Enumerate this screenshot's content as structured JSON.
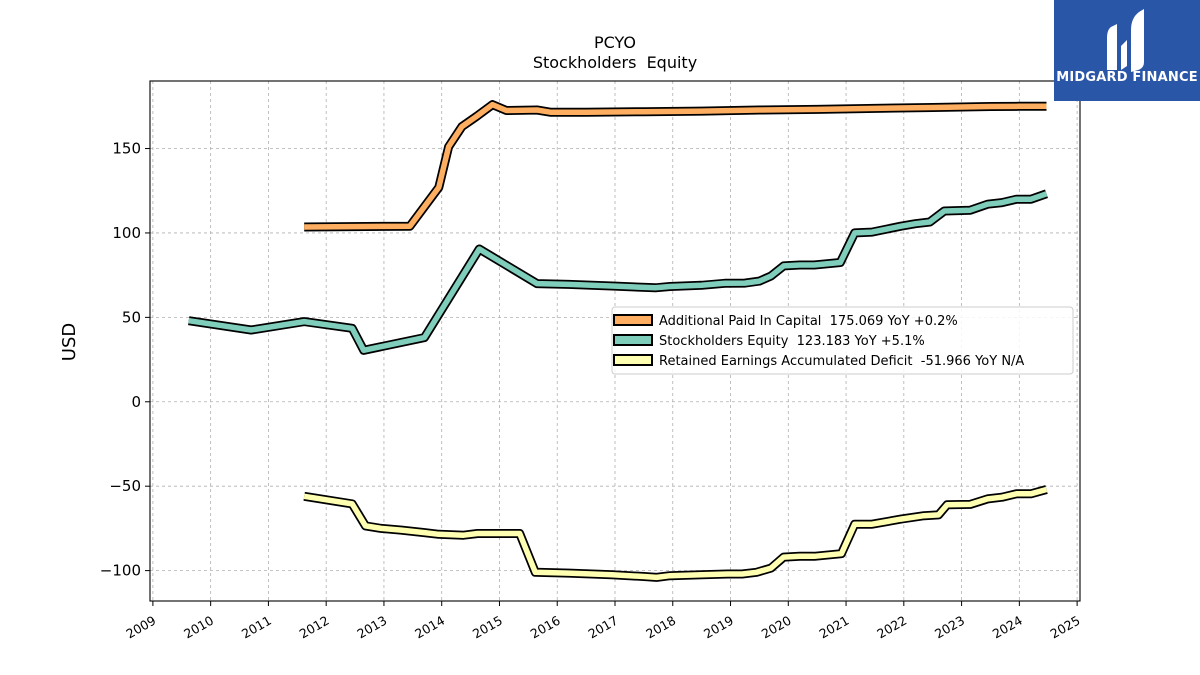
{
  "chart_data": {
    "type": "line",
    "title": "PCYO",
    "subtitle": "Stockholders  Equity",
    "ylabel": "USD",
    "xlabel": "",
    "xlim": [
      2008.95,
      2025.05
    ],
    "ylim": [
      -118,
      190
    ],
    "x_ticks": [
      2009,
      2010,
      2011,
      2012,
      2013,
      2014,
      2015,
      2016,
      2017,
      2018,
      2019,
      2020,
      2021,
      2022,
      2023,
      2024,
      2025
    ],
    "y_ticks": [
      -100,
      -50,
      0,
      50,
      100,
      150
    ],
    "y_tick_labels": [
      "−100",
      "−50",
      "0",
      "50",
      "100",
      "150"
    ],
    "grid": true,
    "legend_position": "center-right",
    "series": [
      {
        "name": "Additional Paid In Capital  175.069 YoY +0.2%",
        "color": "#FDAE61",
        "points": [
          [
            2011.62,
            103.5
          ],
          [
            2013.45,
            104
          ],
          [
            2013.95,
            127
          ],
          [
            2014.12,
            151
          ],
          [
            2014.35,
            163
          ],
          [
            2014.6,
            169
          ],
          [
            2014.88,
            176
          ],
          [
            2015.12,
            172.5
          ],
          [
            2015.65,
            172.8
          ],
          [
            2015.88,
            171.5
          ],
          [
            2016.5,
            171.5
          ],
          [
            2017.5,
            171.8
          ],
          [
            2018.5,
            172.2
          ],
          [
            2019.5,
            172.8
          ],
          [
            2020.5,
            173.2
          ],
          [
            2021.5,
            173.8
          ],
          [
            2022.5,
            174.3
          ],
          [
            2023.0,
            174.6
          ],
          [
            2023.5,
            174.9
          ],
          [
            2024.0,
            175.0
          ],
          [
            2024.47,
            175.069
          ]
        ]
      },
      {
        "name": "Stockholders Equity  123.183 YoY +5.1%",
        "color": "#7FCDBB",
        "points": [
          [
            2009.62,
            48
          ],
          [
            2010.7,
            42.5
          ],
          [
            2011.62,
            47.5
          ],
          [
            2012.45,
            43.5
          ],
          [
            2012.65,
            30.5
          ],
          [
            2013.7,
            38
          ],
          [
            2014.65,
            90.5
          ],
          [
            2015.65,
            70
          ],
          [
            2016.2,
            69.5
          ],
          [
            2017.0,
            68.5
          ],
          [
            2017.7,
            67.5
          ],
          [
            2017.95,
            68.3
          ],
          [
            2018.5,
            69
          ],
          [
            2018.9,
            70.2
          ],
          [
            2019.25,
            70.3
          ],
          [
            2019.5,
            71.5
          ],
          [
            2019.7,
            74.5
          ],
          [
            2019.92,
            80.5
          ],
          [
            2020.2,
            81
          ],
          [
            2020.45,
            81
          ],
          [
            2020.9,
            82.5
          ],
          [
            2021.15,
            100
          ],
          [
            2021.45,
            100.5
          ],
          [
            2021.95,
            104
          ],
          [
            2022.2,
            105.5
          ],
          [
            2022.45,
            106.5
          ],
          [
            2022.7,
            113
          ],
          [
            2023.15,
            113.5
          ],
          [
            2023.45,
            117
          ],
          [
            2023.7,
            118
          ],
          [
            2023.95,
            120
          ],
          [
            2024.2,
            120
          ],
          [
            2024.47,
            123.183
          ]
        ]
      },
      {
        "name": "Retained Earnings Accumulated Deficit  -51.966 YoY N/A",
        "color": "#FFFFB2",
        "points": [
          [
            2011.62,
            -56
          ],
          [
            2012.45,
            -60.5
          ],
          [
            2012.68,
            -73.5
          ],
          [
            2012.95,
            -75
          ],
          [
            2013.3,
            -76
          ],
          [
            2013.7,
            -77.5
          ],
          [
            2013.95,
            -78.5
          ],
          [
            2014.38,
            -79
          ],
          [
            2014.62,
            -78
          ],
          [
            2015.35,
            -78
          ],
          [
            2015.62,
            -101
          ],
          [
            2016.2,
            -101.5
          ],
          [
            2016.95,
            -102.5
          ],
          [
            2017.5,
            -103.5
          ],
          [
            2017.72,
            -104
          ],
          [
            2017.95,
            -103
          ],
          [
            2018.5,
            -102.5
          ],
          [
            2018.95,
            -102
          ],
          [
            2019.2,
            -102
          ],
          [
            2019.45,
            -101
          ],
          [
            2019.7,
            -98.5
          ],
          [
            2019.92,
            -92
          ],
          [
            2020.2,
            -91.5
          ],
          [
            2020.45,
            -91.5
          ],
          [
            2020.92,
            -90
          ],
          [
            2021.15,
            -72.5
          ],
          [
            2021.45,
            -72.5
          ],
          [
            2021.95,
            -69.5
          ],
          [
            2022.35,
            -67.5
          ],
          [
            2022.6,
            -67
          ],
          [
            2022.75,
            -61
          ],
          [
            2023.15,
            -60.8
          ],
          [
            2023.45,
            -57.5
          ],
          [
            2023.7,
            -56.5
          ],
          [
            2023.95,
            -54.5
          ],
          [
            2024.2,
            -54.5
          ],
          [
            2024.47,
            -51.966
          ]
        ]
      }
    ]
  },
  "logo": {
    "text": "MIDGARD FINANCE",
    "bg_color": "#2A56A8"
  }
}
